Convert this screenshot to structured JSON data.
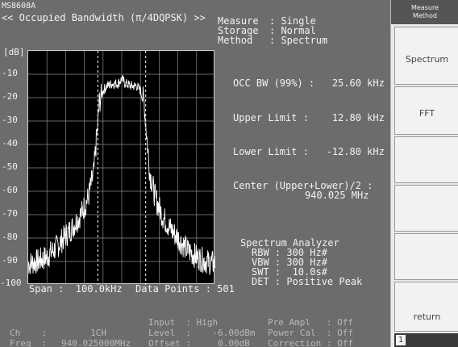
{
  "header": {
    "model": "MS8608A",
    "title": "<< Occupied Bandwidth (π/4DQPSK) >>",
    "measure_label": "Measure",
    "measure_value": ": Single",
    "storage_label": "Storage",
    "storage_value": ": Normal",
    "method_label": "Method",
    "method_value": ": Spectrum"
  },
  "plot": {
    "unit": "[dB]",
    "y_ticks": [
      "-10",
      "-20",
      "-30",
      "-40",
      "-50",
      "-60",
      "-70",
      "-80",
      "-90",
      "-100"
    ],
    "span": "Span :  100.0kHz",
    "data_points": "Data Points : 501"
  },
  "results": {
    "occ_bw": "OCC BW (99%) :   25.60 kHz",
    "upper_limit": "Upper Limit :    12.80 kHz",
    "lower_limit": "Lower Limit :   -12.80 kHz",
    "center_label": "Center (Upper+Lower)/2 :",
    "center_value": "940.025 MHz"
  },
  "analyzer": {
    "title": "Spectrum Analyzer",
    "rbw": "RBW : 300 Hz#",
    "vbw": "VBW : 300 Hz#",
    "swt": "SWT :  10.0s#",
    "det": "DET : Positive Peak"
  },
  "status": {
    "ch_label": "Ch    :",
    "ch_value": "1CH",
    "freq_label": "Freq  :",
    "freq_value": "940.025000MHz",
    "input": "Input  : High",
    "level": "Level  :    -6.00dBm",
    "offset": "Offset :     0.00dB",
    "pre_ampl": "Pre Ampl   : Off",
    "power_cal": "Power Cal  : Off",
    "correction": "Correction : Off"
  },
  "softkeys": {
    "panel_title_1": "Measure",
    "panel_title_2": "Method",
    "spectrum": "Spectrum",
    "fft": "FFT",
    "return": "return",
    "page": "1"
  },
  "chart_data": {
    "type": "line",
    "ylabel": "[dB]",
    "ylim": [
      -100,
      0
    ],
    "xlim": [
      -50,
      50
    ],
    "x_unit": "kHz (offset from 940.025 MHz)",
    "grid": true,
    "markers_x": [
      -12.8,
      12.8
    ],
    "series": [
      {
        "x": [
          -50,
          -45,
          -40,
          -35,
          -30,
          -26,
          -22,
          -18,
          -15,
          -13,
          -12,
          -10,
          -8,
          -5,
          -2,
          0,
          2,
          5,
          8,
          10,
          12,
          13,
          15,
          18,
          22,
          26,
          30,
          35,
          40,
          45,
          50
        ],
        "values": [
          -91,
          -90,
          -88,
          -84,
          -79,
          -75,
          -70,
          -63,
          -52,
          -33,
          -22,
          -17,
          -15,
          -14,
          -14,
          -12,
          -14,
          -15,
          -15,
          -17,
          -22,
          -33,
          -52,
          -63,
          -71,
          -76,
          -80,
          -85,
          -88,
          -90,
          -91
        ]
      }
    ]
  }
}
